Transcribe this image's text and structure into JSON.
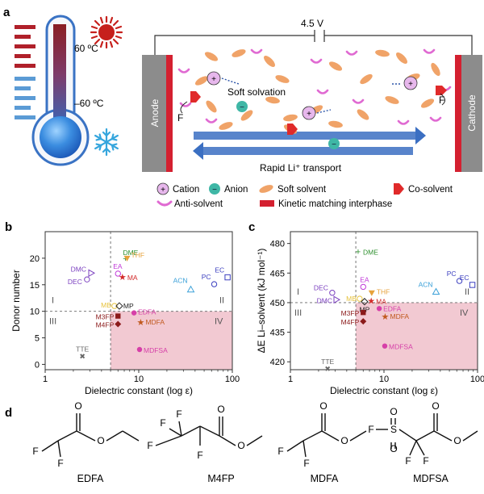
{
  "panel_labels": {
    "a": "a",
    "b": "b",
    "c": "c",
    "d": "d"
  },
  "panel_a": {
    "temp_high": "60 ºC",
    "temp_low": "–60 ºC",
    "voltage": "4.5 V",
    "anode": "Anode",
    "cathode": "Cathode",
    "soft_solvation": "Soft solvation",
    "rapid_transport": "Rapid Li⁺ transport",
    "f_label": "F",
    "cation_symbol": "+",
    "anion_symbol": "−",
    "legend": {
      "cation": "Cation",
      "anion": "Anion",
      "soft_solvent": "Soft solvent",
      "co_solvent": "Co-solvent",
      "anti_solvent": "Anti-solvent",
      "interphase": "Kinetic matching interphase"
    },
    "colors": {
      "electrode": "#8c8c8c",
      "interphase": "#d42030",
      "cation_fill": "#e7b7ec",
      "anion_fill": "#3fb7a6",
      "soft_solvent": "#f0a368",
      "anti_solvent": "#e06ad2",
      "transport_arrow": "#3b6fc2",
      "sun": "#c6201c",
      "snow": "#36a6dd"
    }
  },
  "chart_data": [
    {
      "panel": "b",
      "type": "scatter",
      "xlabel": "Dielectric constant (log ε)",
      "ylabel": "Donor number",
      "x_scale": "log",
      "xlim": [
        1,
        100
      ],
      "ylim": [
        -1,
        25
      ],
      "xticks": [
        1,
        10,
        100
      ],
      "yticks": [
        0,
        5,
        10,
        15,
        20
      ],
      "ref_lines": {
        "x": 5,
        "y": 10
      },
      "quadrant_labels": [
        "I",
        "II",
        "III",
        "IV"
      ],
      "shaded_region": {
        "x": [
          5,
          100
        ],
        "y": [
          -1,
          10
        ],
        "color": "#f2c9d2"
      },
      "points": [
        {
          "name": "DME",
          "x": 7.2,
          "y": 20,
          "color": "#2d8f2d",
          "marker": "+"
        },
        {
          "name": "THF",
          "x": 7.5,
          "y": 20,
          "color": "#e6a23c",
          "marker": "tri-down"
        },
        {
          "name": "EA",
          "x": 6.0,
          "y": 17.1,
          "color": "#c039d8",
          "marker": "circle-open"
        },
        {
          "name": "MA",
          "x": 6.7,
          "y": 16.5,
          "color": "#d22a2a",
          "marker": "star"
        },
        {
          "name": "DMC",
          "x": 3.1,
          "y": 17.2,
          "color": "#7a3fbf",
          "marker": "tri-right-open"
        },
        {
          "name": "DEC",
          "x": 2.8,
          "y": 16.0,
          "color": "#7a3fbf",
          "marker": "circle-open"
        },
        {
          "name": "ACN",
          "x": 36,
          "y": 14.1,
          "color": "#3aa0d8",
          "marker": "tri-up-open"
        },
        {
          "name": "PC",
          "x": 64,
          "y": 15.1,
          "color": "#3b3fbf",
          "marker": "circle-open"
        },
        {
          "name": "EC",
          "x": 89,
          "y": 16.4,
          "color": "#3b3fbf",
          "marker": "square-open"
        },
        {
          "name": "MB",
          "x": 5.5,
          "y": 11.0,
          "color": "#e6c23c",
          "marker": "circle-open"
        },
        {
          "name": "MP",
          "x": 6.2,
          "y": 11.0,
          "color": "#222222",
          "marker": "diamond-open"
        },
        {
          "name": "EDFA",
          "x": 8.9,
          "y": 9.7,
          "color": "#d63fa8",
          "marker": "circle"
        },
        {
          "name": "M3FP",
          "x": 6.0,
          "y": 9.1,
          "color": "#8b1a1a",
          "marker": "square"
        },
        {
          "name": "MDFA",
          "x": 10.5,
          "y": 8.0,
          "color": "#c15a1f",
          "marker": "star"
        },
        {
          "name": "M4FP",
          "x": 6.0,
          "y": 7.6,
          "color": "#8b1a1a",
          "marker": "diamond"
        },
        {
          "name": "MDFSA",
          "x": 10.2,
          "y": 2.8,
          "color": "#d63fa8",
          "marker": "circle"
        },
        {
          "name": "TTE",
          "x": 2.5,
          "y": 1.5,
          "color": "#666666",
          "marker": "x"
        }
      ]
    },
    {
      "panel": "c",
      "type": "scatter",
      "xlabel": "Dielectric constant (log ε)",
      "ylabel": "ΔE Li–solvent (kJ mol⁻¹)",
      "x_scale": "log",
      "xlim": [
        1,
        100
      ],
      "ylim": [
        416,
        486
      ],
      "xticks": [
        1,
        10,
        100
      ],
      "yticks": [
        420,
        435,
        450,
        465,
        480
      ],
      "ref_lines": {
        "x": 5,
        "y": 450
      },
      "quadrant_labels": [
        "I",
        "II",
        "III",
        "IV"
      ],
      "shaded_region": {
        "x": [
          5,
          100
        ],
        "y": [
          416,
          450
        ],
        "color": "#f2c9d2"
      },
      "points": [
        {
          "name": "DME",
          "x": 5.3,
          "y": 476,
          "color": "#2d8f2d",
          "marker": "+"
        },
        {
          "name": "EA",
          "x": 6.0,
          "y": 458,
          "color": "#c039d8",
          "marker": "circle-open"
        },
        {
          "name": "THF",
          "x": 7.4,
          "y": 455,
          "color": "#e6a23c",
          "marker": "tri-down"
        },
        {
          "name": "MA",
          "x": 7.3,
          "y": 451,
          "color": "#d22a2a",
          "marker": "star"
        },
        {
          "name": "DEC",
          "x": 2.8,
          "y": 455,
          "color": "#7a3fbf",
          "marker": "circle-open"
        },
        {
          "name": "DMC",
          "x": 3.1,
          "y": 451.5,
          "color": "#7a3fbf",
          "marker": "tri-right-open"
        },
        {
          "name": "MB",
          "x": 5.5,
          "y": 452,
          "color": "#e6c23c",
          "marker": "circle-open"
        },
        {
          "name": "MP",
          "x": 6.2,
          "y": 450.5,
          "color": "#222222",
          "marker": "diamond-open"
        },
        {
          "name": "ACN",
          "x": 36,
          "y": 455.5,
          "color": "#3aa0d8",
          "marker": "tri-up-open"
        },
        {
          "name": "PC",
          "x": 64,
          "y": 461,
          "color": "#3b3fbf",
          "marker": "circle-open"
        },
        {
          "name": "EC",
          "x": 88,
          "y": 459,
          "color": "#3b3fbf",
          "marker": "square-open"
        },
        {
          "name": "EDFA",
          "x": 8.9,
          "y": 447,
          "color": "#d63fa8",
          "marker": "circle"
        },
        {
          "name": "M3FP",
          "x": 6.0,
          "y": 445,
          "color": "#8b1a1a",
          "marker": "square"
        },
        {
          "name": "MDFA",
          "x": 10.3,
          "y": 443,
          "color": "#c15a1f",
          "marker": "star"
        },
        {
          "name": "M4FP",
          "x": 6.0,
          "y": 440.5,
          "color": "#8b1a1a",
          "marker": "diamond"
        },
        {
          "name": "MDFSA",
          "x": 10.2,
          "y": 428,
          "color": "#d63fa8",
          "marker": "circle"
        },
        {
          "name": "TTE",
          "x": 2.5,
          "y": 416.5,
          "color": "#666666",
          "marker": "x"
        }
      ]
    }
  ],
  "molecules": [
    {
      "name": "EDFA",
      "atoms": [
        "F",
        "F",
        "O",
        "O"
      ]
    },
    {
      "name": "M4FP",
      "atoms": [
        "F",
        "F",
        "F",
        "F",
        "O",
        "O"
      ]
    },
    {
      "name": "MDFA",
      "atoms": [
        "F",
        "F",
        "O",
        "O"
      ]
    },
    {
      "name": "MDFSA",
      "atoms": [
        "F",
        "S",
        "O",
        "O",
        "F",
        "F",
        "O",
        "O"
      ]
    }
  ]
}
